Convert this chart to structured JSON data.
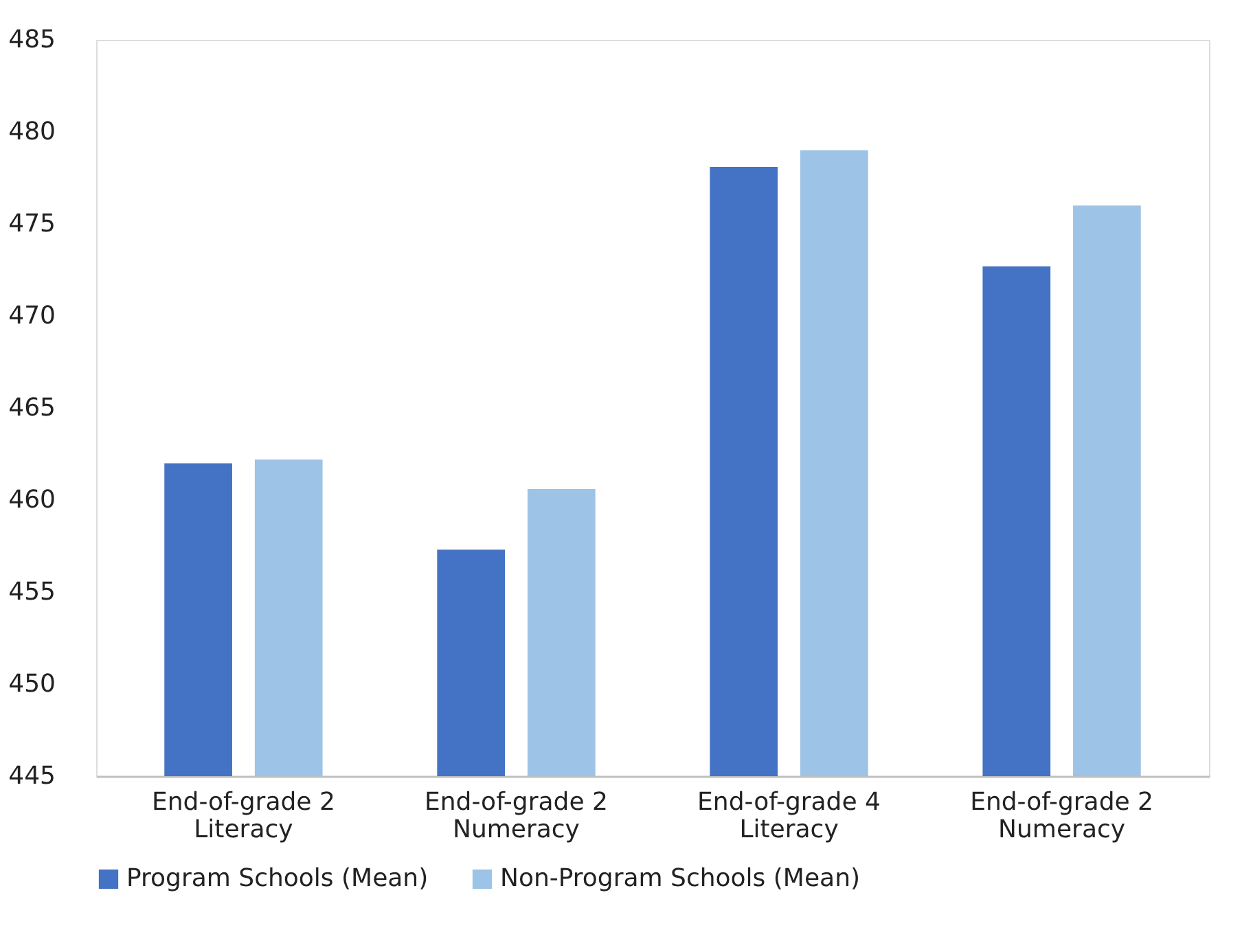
{
  "chart_data": {
    "type": "bar",
    "categories": [
      "End-of-grade 2\nLiteracy",
      "End-of-grade 2\nNumeracy",
      "End-of-grade 4\nLiteracy",
      "End-of-grade 2\nNumeracy"
    ],
    "series": [
      {
        "name": "Program Schools (Mean)",
        "color": "#4472c4",
        "values": [
          462.0,
          457.3,
          478.1,
          472.7
        ]
      },
      {
        "name": "Non-Program Schools (Mean)",
        "color": "#9dc3e6",
        "values": [
          462.2,
          460.6,
          479.0,
          476.0
        ]
      }
    ],
    "ylim": [
      445,
      485
    ],
    "yticks": [
      445,
      450,
      455,
      460,
      465,
      470,
      475,
      480,
      485
    ],
    "grid": false,
    "legend": "bottom"
  }
}
